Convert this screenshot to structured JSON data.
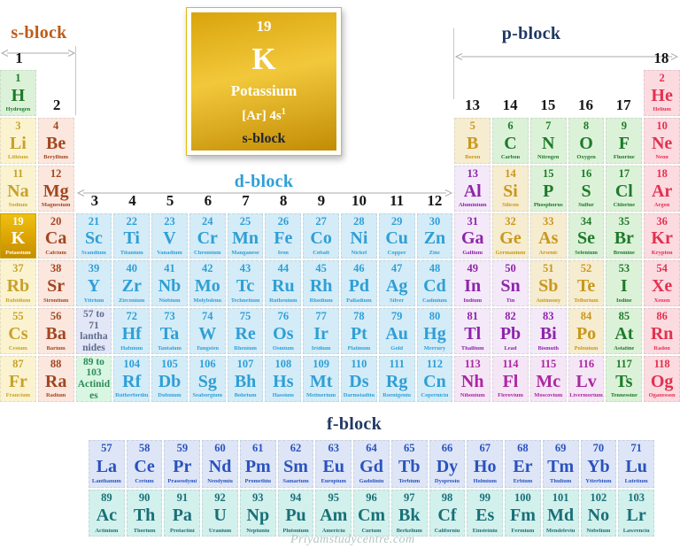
{
  "feature_card": {
    "number": "19",
    "symbol": "K",
    "name": "Potassium",
    "config": "[Ar] 4s",
    "config_sup": "1",
    "block": "s-block"
  },
  "block_labels": {
    "s": "s-block",
    "p": "p-block",
    "d": "d-block",
    "f": "f-block"
  },
  "watermark": "Priyamstudycentre.com",
  "palette": {
    "alkali_bg": "#FBF3CF",
    "alkali_fg": "#C8A12B",
    "alkaline_bg": "#FBE7DE",
    "alkaline_fg": "#A34620",
    "transition_bg": "#D4ECF8",
    "transition_fg": "#2E9FD6",
    "post_bg": "#F4E9F8",
    "post_fg": "#8E24AA",
    "post7_fg": "#AB26A2",
    "metalloid_bg": "#F6ECD0",
    "metalloid_fg": "#C9971B",
    "nonmetal_bg": "#DCF2D8",
    "nonmetal_fg": "#1E7A2A",
    "noble_bg": "#FBDAE0",
    "noble_fg": "#E3314F",
    "lanthanide_bg": "#DDE5F7",
    "lanthanide_fg": "#2A52BE",
    "actinide_bg": "#D2F0EC",
    "actinide_fg": "#187078",
    "highlight_bg": "#DCA403",
    "s_label": "#BF5B16",
    "p_label": "#203864",
    "d_label": "#2E9FD6",
    "f_label": "#203864"
  },
  "group_headers": [
    {
      "label": "1",
      "col": 1,
      "tier": "top"
    },
    {
      "label": "18",
      "col": 18,
      "tier": "top"
    },
    {
      "label": "2",
      "col": 2,
      "tier": "mid"
    },
    {
      "label": "13",
      "col": 13,
      "tier": "mid"
    },
    {
      "label": "14",
      "col": 14,
      "tier": "mid"
    },
    {
      "label": "15",
      "col": 15,
      "tier": "mid"
    },
    {
      "label": "16",
      "col": 16,
      "tier": "mid"
    },
    {
      "label": "17",
      "col": 17,
      "tier": "mid"
    },
    {
      "label": "3",
      "col": 3,
      "tier": "low"
    },
    {
      "label": "4",
      "col": 4,
      "tier": "low"
    },
    {
      "label": "5",
      "col": 5,
      "tier": "low"
    },
    {
      "label": "6",
      "col": 6,
      "tier": "low"
    },
    {
      "label": "7",
      "col": 7,
      "tier": "low"
    },
    {
      "label": "8",
      "col": 8,
      "tier": "low"
    },
    {
      "label": "9",
      "col": 9,
      "tier": "low"
    },
    {
      "label": "10",
      "col": 10,
      "tier": "low"
    },
    {
      "label": "11",
      "col": 11,
      "tier": "low"
    },
    {
      "label": "12",
      "col": 12,
      "tier": "low"
    }
  ],
  "placeholders": [
    {
      "text": "57 to 71 lanthanides",
      "cat": "lanplace",
      "row": 6,
      "col": 3
    },
    {
      "text": "89 to 103 Actinides",
      "cat": "actplace",
      "row": 7,
      "col": 3
    }
  ],
  "elements": [
    {
      "n": "1",
      "sym": "H",
      "name": "Hydrogen",
      "cat": "nonmetal",
      "row": 1,
      "col": 1
    },
    {
      "n": "2",
      "sym": "He",
      "name": "Helium",
      "cat": "noble",
      "row": 1,
      "col": 18
    },
    {
      "n": "3",
      "sym": "Li",
      "name": "Lithium",
      "cat": "alkali",
      "row": 2,
      "col": 1
    },
    {
      "n": "4",
      "sym": "Be",
      "name": "Beryllium",
      "cat": "alkaline",
      "row": 2,
      "col": 2
    },
    {
      "n": "5",
      "sym": "B",
      "name": "Boron",
      "cat": "metalloid",
      "row": 2,
      "col": 13
    },
    {
      "n": "6",
      "sym": "C",
      "name": "Carbon",
      "cat": "nonmetal",
      "row": 2,
      "col": 14
    },
    {
      "n": "7",
      "sym": "N",
      "name": "Nitrogen",
      "cat": "nonmetal",
      "row": 2,
      "col": 15
    },
    {
      "n": "8",
      "sym": "O",
      "name": "Oxygen",
      "cat": "nonmetal",
      "row": 2,
      "col": 16
    },
    {
      "n": "9",
      "sym": "F",
      "name": "Fluorine",
      "cat": "nonmetal",
      "row": 2,
      "col": 17
    },
    {
      "n": "10",
      "sym": "Ne",
      "name": "Neon",
      "cat": "noble",
      "row": 2,
      "col": 18
    },
    {
      "n": "11",
      "sym": "Na",
      "name": "Sodium",
      "cat": "alkali",
      "row": 3,
      "col": 1
    },
    {
      "n": "12",
      "sym": "Mg",
      "name": "Magnesium",
      "cat": "alkaline",
      "row": 3,
      "col": 2
    },
    {
      "n": "13",
      "sym": "Al",
      "name": "Aluminium",
      "cat": "post",
      "row": 3,
      "col": 13
    },
    {
      "n": "14",
      "sym": "Si",
      "name": "Silicon",
      "cat": "metalloid",
      "row": 3,
      "col": 14
    },
    {
      "n": "15",
      "sym": "P",
      "name": "Phosphorus",
      "cat": "nonmetal",
      "row": 3,
      "col": 15
    },
    {
      "n": "16",
      "sym": "S",
      "name": "Sulfur",
      "cat": "nonmetal",
      "row": 3,
      "col": 16
    },
    {
      "n": "17",
      "sym": "Cl",
      "name": "Chlorine",
      "cat": "nonmetal",
      "row": 3,
      "col": 17
    },
    {
      "n": "18",
      "sym": "Ar",
      "name": "Argon",
      "cat": "noble",
      "row": 3,
      "col": 18
    },
    {
      "n": "19",
      "sym": "K",
      "name": "Potassium",
      "cat": "highlight",
      "row": 4,
      "col": 1
    },
    {
      "n": "20",
      "sym": "Ca",
      "name": "Calcium",
      "cat": "alkaline",
      "row": 4,
      "col": 2
    },
    {
      "n": "21",
      "sym": "Sc",
      "name": "Scandium",
      "cat": "transition",
      "row": 4,
      "col": 3
    },
    {
      "n": "22",
      "sym": "Ti",
      "name": "Titanium",
      "cat": "transition",
      "row": 4,
      "col": 4
    },
    {
      "n": "23",
      "sym": "V",
      "name": "Vanadium",
      "cat": "transition",
      "row": 4,
      "col": 5
    },
    {
      "n": "24",
      "sym": "Cr",
      "name": "Chromium",
      "cat": "transition",
      "row": 4,
      "col": 6
    },
    {
      "n": "25",
      "sym": "Mn",
      "name": "Manganese",
      "cat": "transition",
      "row": 4,
      "col": 7
    },
    {
      "n": "26",
      "sym": "Fe",
      "name": "Iron",
      "cat": "transition",
      "row": 4,
      "col": 8
    },
    {
      "n": "27",
      "sym": "Co",
      "name": "Cobalt",
      "cat": "transition",
      "row": 4,
      "col": 9
    },
    {
      "n": "28",
      "sym": "Ni",
      "name": "Nickel",
      "cat": "transition",
      "row": 4,
      "col": 10
    },
    {
      "n": "29",
      "sym": "Cu",
      "name": "Copper",
      "cat": "transition",
      "row": 4,
      "col": 11
    },
    {
      "n": "30",
      "sym": "Zn",
      "name": "Zinc",
      "cat": "transition",
      "row": 4,
      "col": 12
    },
    {
      "n": "31",
      "sym": "Ga",
      "name": "Gallium",
      "cat": "post",
      "row": 4,
      "col": 13
    },
    {
      "n": "32",
      "sym": "Ge",
      "name": "Germanium",
      "cat": "metalloid",
      "row": 4,
      "col": 14
    },
    {
      "n": "33",
      "sym": "As",
      "name": "Arsenic",
      "cat": "metalloid",
      "row": 4,
      "col": 15
    },
    {
      "n": "34",
      "sym": "Se",
      "name": "Selenium",
      "cat": "nonmetal",
      "row": 4,
      "col": 16
    },
    {
      "n": "35",
      "sym": "Br",
      "name": "Bromine",
      "cat": "nonmetal",
      "row": 4,
      "col": 17
    },
    {
      "n": "36",
      "sym": "Kr",
      "name": "Krypton",
      "cat": "noble",
      "row": 4,
      "col": 18
    },
    {
      "n": "37",
      "sym": "Rb",
      "name": "Rubidium",
      "cat": "alkali",
      "row": 5,
      "col": 1
    },
    {
      "n": "38",
      "sym": "Sr",
      "name": "Strontium",
      "cat": "alkaline",
      "row": 5,
      "col": 2
    },
    {
      "n": "39",
      "sym": "Y",
      "name": "Yttrium",
      "cat": "transition",
      "row": 5,
      "col": 3
    },
    {
      "n": "40",
      "sym": "Zr",
      "name": "Zirconium",
      "cat": "transition",
      "row": 5,
      "col": 4
    },
    {
      "n": "41",
      "sym": "Nb",
      "name": "Niobium",
      "cat": "transition",
      "row": 5,
      "col": 5
    },
    {
      "n": "42",
      "sym": "Mo",
      "name": "Molybdenu",
      "cat": "transition",
      "row": 5,
      "col": 6
    },
    {
      "n": "43",
      "sym": "Tc",
      "name": "Technetium",
      "cat": "transition",
      "row": 5,
      "col": 7
    },
    {
      "n": "44",
      "sym": "Ru",
      "name": "Ruthenium",
      "cat": "transition",
      "row": 5,
      "col": 8
    },
    {
      "n": "45",
      "sym": "Rh",
      "name": "Rhodium",
      "cat": "transition",
      "row": 5,
      "col": 9
    },
    {
      "n": "46",
      "sym": "Pd",
      "name": "Palladium",
      "cat": "transition",
      "row": 5,
      "col": 10
    },
    {
      "n": "47",
      "sym": "Ag",
      "name": "Silver",
      "cat": "transition",
      "row": 5,
      "col": 11
    },
    {
      "n": "48",
      "sym": "Cd",
      "name": "Cadmium",
      "cat": "transition",
      "row": 5,
      "col": 12
    },
    {
      "n": "49",
      "sym": "In",
      "name": "Indium",
      "cat": "post",
      "row": 5,
      "col": 13
    },
    {
      "n": "50",
      "sym": "Sn",
      "name": "Tin",
      "cat": "post",
      "row": 5,
      "col": 14
    },
    {
      "n": "51",
      "sym": "Sb",
      "name": "Antimony",
      "cat": "metalloid",
      "row": 5,
      "col": 15
    },
    {
      "n": "52",
      "sym": "Te",
      "name": "Tellurium",
      "cat": "metalloid",
      "row": 5,
      "col": 16
    },
    {
      "n": "53",
      "sym": "I",
      "name": "Iodine",
      "cat": "nonmetal",
      "row": 5,
      "col": 17
    },
    {
      "n": "54",
      "sym": "Xe",
      "name": "Xenon",
      "cat": "noble",
      "row": 5,
      "col": 18
    },
    {
      "n": "55",
      "sym": "Cs",
      "name": "Cesium",
      "cat": "alkali",
      "row": 6,
      "col": 1
    },
    {
      "n": "56",
      "sym": "Ba",
      "name": "Barium",
      "cat": "alkaline",
      "row": 6,
      "col": 2
    },
    {
      "n": "72",
      "sym": "Hf",
      "name": "Hafnium",
      "cat": "transition",
      "row": 6,
      "col": 4
    },
    {
      "n": "73",
      "sym": "Ta",
      "name": "Tantalum",
      "cat": "transition",
      "row": 6,
      "col": 5
    },
    {
      "n": "74",
      "sym": "W",
      "name": "Tungsten",
      "cat": "transition",
      "row": 6,
      "col": 6
    },
    {
      "n": "75",
      "sym": "Re",
      "name": "Rhenium",
      "cat": "transition",
      "row": 6,
      "col": 7
    },
    {
      "n": "76",
      "sym": "Os",
      "name": "Osmium",
      "cat": "transition",
      "row": 6,
      "col": 8
    },
    {
      "n": "77",
      "sym": "Ir",
      "name": "Iridium",
      "cat": "transition",
      "row": 6,
      "col": 9
    },
    {
      "n": "78",
      "sym": "Pt",
      "name": "Platinum",
      "cat": "transition",
      "row": 6,
      "col": 10
    },
    {
      "n": "79",
      "sym": "Au",
      "name": "Gold",
      "cat": "transition",
      "row": 6,
      "col": 11
    },
    {
      "n": "80",
      "sym": "Hg",
      "name": "Mercury",
      "cat": "transition",
      "row": 6,
      "col": 12
    },
    {
      "n": "81",
      "sym": "Tl",
      "name": "Thallium",
      "cat": "post",
      "row": 6,
      "col": 13
    },
    {
      "n": "82",
      "sym": "Pb",
      "name": "Lead",
      "cat": "post",
      "row": 6,
      "col": 14
    },
    {
      "n": "83",
      "sym": "Bi",
      "name": "Bismuth",
      "cat": "post",
      "row": 6,
      "col": 15
    },
    {
      "n": "84",
      "sym": "Po",
      "name": "Polonium",
      "cat": "metalloid",
      "row": 6,
      "col": 16
    },
    {
      "n": "85",
      "sym": "At",
      "name": "Astatine",
      "cat": "nonmetal",
      "row": 6,
      "col": 17
    },
    {
      "n": "86",
      "sym": "Rn",
      "name": "Radon",
      "cat": "noble",
      "row": 6,
      "col": 18
    },
    {
      "n": "87",
      "sym": "Fr",
      "name": "Francium",
      "cat": "alkali",
      "row": 7,
      "col": 1
    },
    {
      "n": "88",
      "sym": "Ra",
      "name": "Radium",
      "cat": "alkaline",
      "row": 7,
      "col": 2
    },
    {
      "n": "104",
      "sym": "Rf",
      "name": "Rutherfordiu",
      "cat": "transition",
      "row": 7,
      "col": 4
    },
    {
      "n": "105",
      "sym": "Db",
      "name": "Dubnium",
      "cat": "transition",
      "row": 7,
      "col": 5
    },
    {
      "n": "106",
      "sym": "Sg",
      "name": "Seaborgium",
      "cat": "transition",
      "row": 7,
      "col": 6
    },
    {
      "n": "107",
      "sym": "Bh",
      "name": "Bohrium",
      "cat": "transition",
      "row": 7,
      "col": 7
    },
    {
      "n": "108",
      "sym": "Hs",
      "name": "Hassium",
      "cat": "transition",
      "row": 7,
      "col": 8
    },
    {
      "n": "109",
      "sym": "Mt",
      "name": "Meitnerium",
      "cat": "transition",
      "row": 7,
      "col": 9
    },
    {
      "n": "110",
      "sym": "Ds",
      "name": "Darmstadtiu",
      "cat": "transition",
      "row": 7,
      "col": 10
    },
    {
      "n": "111",
      "sym": "Rg",
      "name": "Roentgeniu",
      "cat": "transition",
      "row": 7,
      "col": 11
    },
    {
      "n": "112",
      "sym": "Cn",
      "name": "Coperniciu",
      "cat": "transition",
      "row": 7,
      "col": 12
    },
    {
      "n": "113",
      "sym": "Nh",
      "name": "Nihonium",
      "cat": "post7",
      "row": 7,
      "col": 13
    },
    {
      "n": "114",
      "sym": "Fl",
      "name": "Flerovium",
      "cat": "post7",
      "row": 7,
      "col": 14
    },
    {
      "n": "115",
      "sym": "Mc",
      "name": "Moscovium",
      "cat": "post7",
      "row": 7,
      "col": 15
    },
    {
      "n": "116",
      "sym": "Lv",
      "name": "Livermorium",
      "cat": "post7",
      "row": 7,
      "col": 16
    },
    {
      "n": "117",
      "sym": "Ts",
      "name": "Tennessine",
      "cat": "nonmetal",
      "row": 7,
      "col": 17
    },
    {
      "n": "118",
      "sym": "Og",
      "name": "Oganesson",
      "cat": "noble",
      "row": 7,
      "col": 18
    }
  ],
  "fblock": {
    "lanthanides": [
      {
        "n": "57",
        "sym": "La",
        "name": "Lanthanum",
        "cat": "lanth"
      },
      {
        "n": "58",
        "sym": "Ce",
        "name": "Cerium",
        "cat": "lanth"
      },
      {
        "n": "59",
        "sym": "Pr",
        "name": "Praseodymi",
        "cat": "lanth"
      },
      {
        "n": "60",
        "sym": "Nd",
        "name": "Neodymiu",
        "cat": "lanth"
      },
      {
        "n": "61",
        "sym": "Pm",
        "name": "Promethiu",
        "cat": "lanth"
      },
      {
        "n": "62",
        "sym": "Sm",
        "name": "Samarium",
        "cat": "lanth"
      },
      {
        "n": "63",
        "sym": "Eu",
        "name": "Europium",
        "cat": "lanth"
      },
      {
        "n": "64",
        "sym": "Gd",
        "name": "Gadoliniu",
        "cat": "lanth"
      },
      {
        "n": "65",
        "sym": "Tb",
        "name": "Terbium",
        "cat": "lanth"
      },
      {
        "n": "66",
        "sym": "Dy",
        "name": "Dysprosiu",
        "cat": "lanth"
      },
      {
        "n": "67",
        "sym": "Ho",
        "name": "Holmium",
        "cat": "lanth"
      },
      {
        "n": "68",
        "sym": "Er",
        "name": "Erbium",
        "cat": "lanth"
      },
      {
        "n": "69",
        "sym": "Tm",
        "name": "Thulium",
        "cat": "lanth"
      },
      {
        "n": "70",
        "sym": "Yb",
        "name": "Ytterbium",
        "cat": "lanth"
      },
      {
        "n": "71",
        "sym": "Lu",
        "name": "Lutetium",
        "cat": "lanth"
      }
    ],
    "actinides": [
      {
        "n": "89",
        "sym": "Ac",
        "name": "Actinium",
        "cat": "actin"
      },
      {
        "n": "90",
        "sym": "Th",
        "name": "Thorium",
        "cat": "actin"
      },
      {
        "n": "91",
        "sym": "Pa",
        "name": "Protactini",
        "cat": "actin"
      },
      {
        "n": "92",
        "sym": "U",
        "name": "Uranium",
        "cat": "actin"
      },
      {
        "n": "93",
        "sym": "Np",
        "name": "Neptuniu",
        "cat": "actin"
      },
      {
        "n": "94",
        "sym": "Pu",
        "name": "Plutonium",
        "cat": "actin"
      },
      {
        "n": "95",
        "sym": "Am",
        "name": "Americiu",
        "cat": "actin"
      },
      {
        "n": "96",
        "sym": "Cm",
        "name": "Curium",
        "cat": "actin"
      },
      {
        "n": "97",
        "sym": "Bk",
        "name": "Berkelium",
        "cat": "actin"
      },
      {
        "n": "98",
        "sym": "Cf",
        "name": "Californiu",
        "cat": "actin"
      },
      {
        "n": "99",
        "sym": "Es",
        "name": "Einsteiniu",
        "cat": "actin"
      },
      {
        "n": "100",
        "sym": "Fm",
        "name": "Fermium",
        "cat": "actin"
      },
      {
        "n": "101",
        "sym": "Md",
        "name": "Mendeleviu",
        "cat": "actin"
      },
      {
        "n": "102",
        "sym": "No",
        "name": "Nobelium",
        "cat": "actin"
      },
      {
        "n": "103",
        "sym": "Lr",
        "name": "Lawrenciu",
        "cat": "actin"
      }
    ]
  }
}
